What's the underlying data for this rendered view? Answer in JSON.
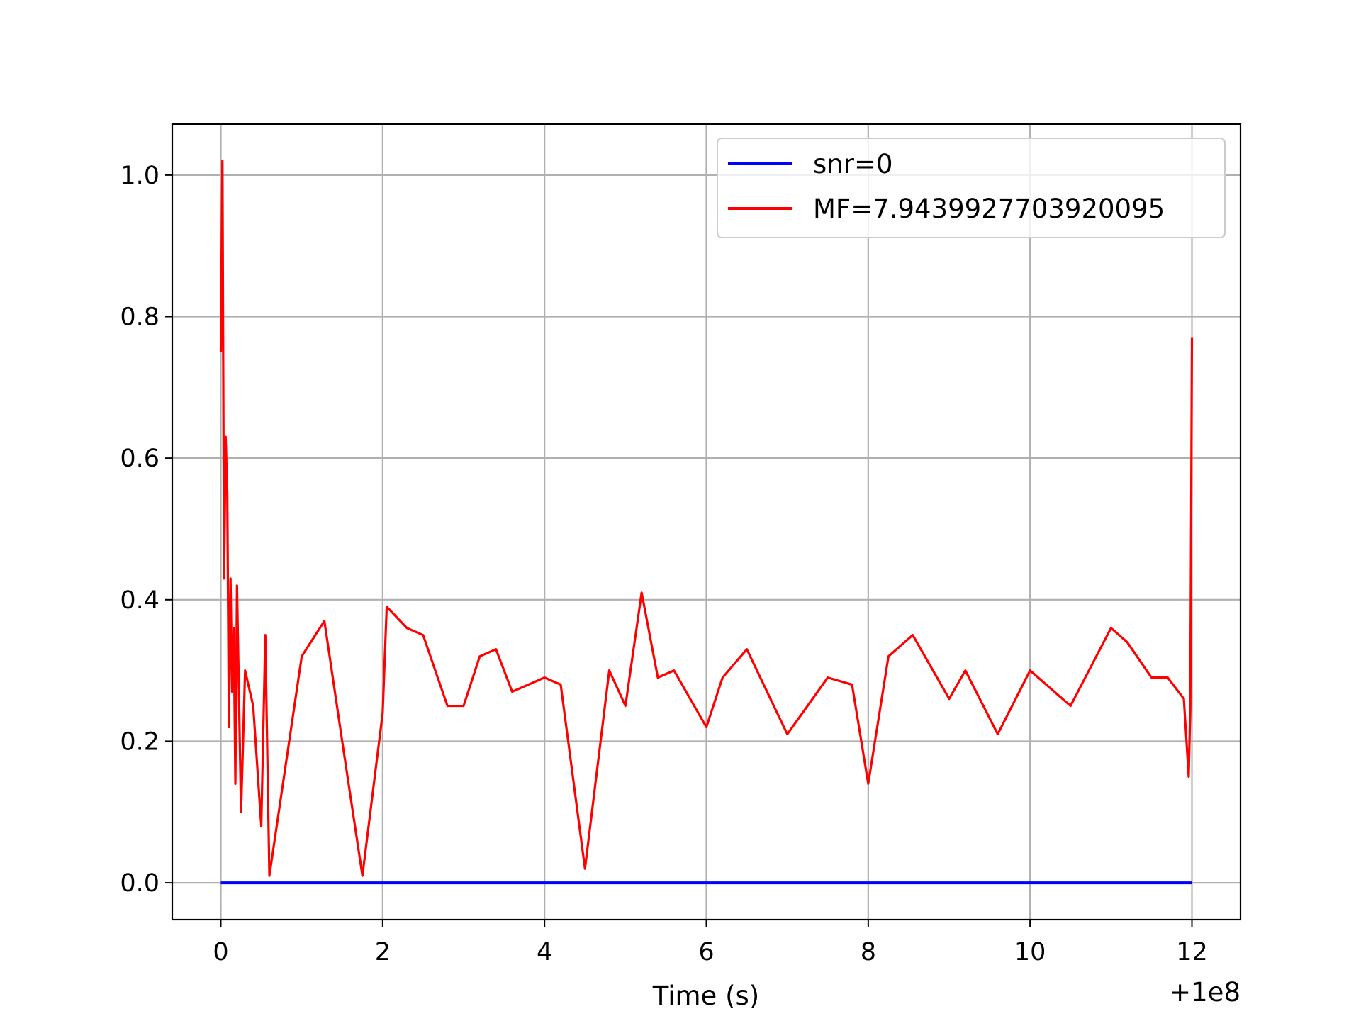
{
  "chart_data": {
    "type": "line",
    "title": "",
    "xlabel": "Time (s)",
    "ylabel": "",
    "x_offset_label": "+1e8",
    "xlim": [
      -0.6,
      12.6
    ],
    "ylim": [
      -0.052,
      1.072
    ],
    "xticks": [
      0,
      2,
      4,
      6,
      8,
      10,
      12
    ],
    "xtick_labels": [
      "0",
      "2",
      "4",
      "6",
      "8",
      "10",
      "12"
    ],
    "yticks": [
      0.0,
      0.2,
      0.4,
      0.6,
      0.8,
      1.0
    ],
    "ytick_labels": [
      "0.0",
      "0.2",
      "0.4",
      "0.6",
      "0.8",
      "1.0"
    ],
    "grid": true,
    "legend_position": "top-right",
    "series": [
      {
        "name": "snr=0",
        "color": "#0000ff",
        "x": [
          0,
          12
        ],
        "y": [
          0.0,
          0.0
        ]
      },
      {
        "name": "MF=7.9439927703920095",
        "color": "#ff0000",
        "x": [
          0,
          0.02,
          0.04,
          0.06,
          0.08,
          0.1,
          0.12,
          0.14,
          0.16,
          0.18,
          0.2,
          0.25,
          0.3,
          0.4,
          0.5,
          0.55,
          0.6,
          1.0,
          1.28,
          1.5,
          1.75,
          2.0,
          2.05,
          2.3,
          2.5,
          2.8,
          3.0,
          3.2,
          3.4,
          3.6,
          4.0,
          4.2,
          4.5,
          4.8,
          5.0,
          5.2,
          5.4,
          5.6,
          6.0,
          6.2,
          6.5,
          7.0,
          7.5,
          7.8,
          8.0,
          8.25,
          8.55,
          9.0,
          9.2,
          9.6,
          10.0,
          10.5,
          11.0,
          11.2,
          11.5,
          11.7,
          11.9,
          11.96,
          11.98,
          12.0
        ],
        "y": [
          0.75,
          1.02,
          0.43,
          0.63,
          0.55,
          0.22,
          0.43,
          0.27,
          0.36,
          0.14,
          0.42,
          0.1,
          0.3,
          0.25,
          0.08,
          0.35,
          0.01,
          0.32,
          0.37,
          0.2,
          0.01,
          0.24,
          0.39,
          0.36,
          0.35,
          0.25,
          0.25,
          0.32,
          0.33,
          0.27,
          0.29,
          0.28,
          0.02,
          0.3,
          0.25,
          0.41,
          0.29,
          0.3,
          0.22,
          0.29,
          0.33,
          0.21,
          0.29,
          0.28,
          0.14,
          0.32,
          0.35,
          0.26,
          0.3,
          0.21,
          0.3,
          0.25,
          0.36,
          0.34,
          0.29,
          0.29,
          0.26,
          0.15,
          0.25,
          0.77
        ]
      }
    ]
  }
}
